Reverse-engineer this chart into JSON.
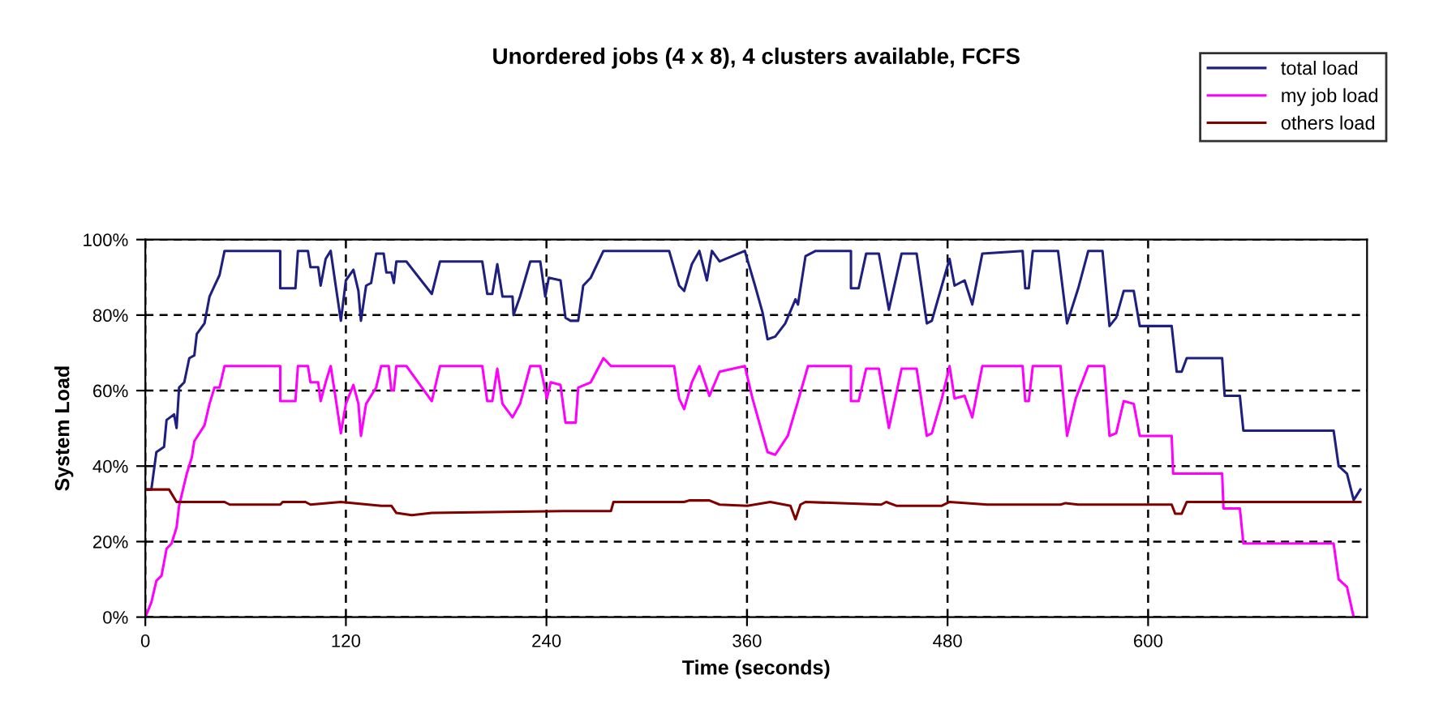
{
  "chart_data": {
    "type": "line",
    "title": "Unordered jobs (4 x 8), 4 clusters available, FCFS",
    "xlabel": "Time (seconds)",
    "ylabel": "System Load",
    "xlim": [
      0,
      731
    ],
    "xticks": [
      0,
      120,
      240,
      360,
      480,
      600
    ],
    "ylim": [
      0,
      100
    ],
    "yticks": [
      {
        "value": 0,
        "label": "0%"
      },
      {
        "value": 20,
        "label": "20%"
      },
      {
        "value": 40,
        "label": "40%"
      },
      {
        "value": 60,
        "label": "60%"
      },
      {
        "value": 80,
        "label": "80%"
      },
      {
        "value": 100,
        "label": "100%"
      }
    ],
    "grid": true,
    "legend": "top right",
    "marker": "none",
    "line_style": "solid",
    "series": [
      {
        "name": "total load",
        "color": "#1f1f80",
        "x": [
          0,
          3.6,
          6.6,
          11.2,
          12.7,
          17.2,
          18.7,
          20.2,
          23.3,
          26.3,
          29.3,
          30.8,
          35.4,
          38.4,
          41.4,
          44.4,
          47.4,
          80.7,
          80.7,
          89.8,
          91.3,
          97.3,
          98.8,
          103.4,
          104.9,
          107.9,
          110.9,
          113.9,
          117,
          120,
          124.5,
          127.5,
          129,
          132.1,
          135.1,
          138.1,
          142.6,
          144.2,
          147.2,
          148.7,
          150.2,
          156.2,
          171.4,
          176.3,
          201.6,
          204.6,
          207.6,
          210.6,
          213.7,
          219.7,
          220.3,
          224.2,
          230.3,
          236.3,
          239.3,
          241.4,
          248.4,
          251.4,
          254.4,
          259,
          262,
          266.5,
          274.1,
          313.4,
          319.4,
          322.4,
          327,
          331.5,
          336,
          339,
          343.6,
          358.7,
          364.8,
          369.3,
          372.3,
          376.9,
          382.9,
          389,
          390.5,
          395,
          401.1,
          422.2,
          422.2,
          426.8,
          431.3,
          438.9,
          444.9,
          452.5,
          461.5,
          467.6,
          470.6,
          476.6,
          481.2,
          484.2,
          490.2,
          494.8,
          500.8,
          524.9,
          526.5,
          528.6,
          531,
          546.1,
          551.5,
          558.2,
          564.2,
          572.7,
          576.9,
          580.9,
          585.4,
          591.4,
          595,
          614.1,
          617.1,
          620.1,
          623.1,
          644.3,
          645.8,
          654.9,
          657,
          711,
          714,
          719,
          723,
          727
        ],
        "values": [
          33.8,
          33.8,
          43.7,
          45.1,
          52.2,
          53.7,
          50.1,
          60.8,
          62.2,
          68.6,
          69.3,
          75,
          77.8,
          84.9,
          87.8,
          90.6,
          97,
          97,
          87.1,
          87.1,
          97,
          97,
          92.7,
          92.7,
          87.8,
          94.9,
          97,
          87.8,
          78.5,
          89.2,
          92,
          86.4,
          78.5,
          87.8,
          88.5,
          96.3,
          96.3,
          91.3,
          91.3,
          88.5,
          94.2,
          94.2,
          85.6,
          94.2,
          94.2,
          85.6,
          85.6,
          93.5,
          84.9,
          84.9,
          80,
          84.9,
          94.2,
          94.2,
          84.9,
          89.9,
          89.2,
          79.3,
          78.5,
          78.5,
          87.8,
          89.9,
          97,
          97,
          87.8,
          86.4,
          93.5,
          97,
          89.2,
          97,
          94.2,
          97,
          87.8,
          80.7,
          73.6,
          74.3,
          77.8,
          84.2,
          82.8,
          95.6,
          97,
          97,
          87.1,
          87.1,
          96.3,
          96.3,
          81.4,
          96.3,
          96.3,
          77.8,
          78.5,
          87.8,
          94.9,
          87.8,
          89.2,
          82.8,
          96.3,
          97,
          87.1,
          87.1,
          97,
          97,
          77.8,
          87.1,
          97,
          97,
          77.1,
          79.3,
          86.4,
          86.4,
          77.1,
          77.1,
          65,
          65,
          68.6,
          68.6,
          58.6,
          58.6,
          49.4,
          49.4,
          40,
          38,
          31,
          33.8
        ]
      },
      {
        "name": "my job load",
        "color": "#ff00ff",
        "x": [
          0,
          3.6,
          6.6,
          9.7,
          12.7,
          15.7,
          18.7,
          20.2,
          24.8,
          27.8,
          29.3,
          35.4,
          38.4,
          41.4,
          44.4,
          47.4,
          80.7,
          80.7,
          89.8,
          91.3,
          97.3,
          98.8,
          103.4,
          104.9,
          107.9,
          110.9,
          113.9,
          117,
          120,
          124.5,
          127.5,
          129,
          132.1,
          138.1,
          141.1,
          145.6,
          147.2,
          148.7,
          150.2,
          156.2,
          171.4,
          176.3,
          201.6,
          204.6,
          207.6,
          210.6,
          213.7,
          219.7,
          224.2,
          230.3,
          236.3,
          240.3,
          242.5,
          248.4,
          251.4,
          257.5,
          259,
          266.5,
          274.1,
          278.6,
          316.4,
          319.4,
          322.4,
          327,
          331.5,
          337.5,
          343.6,
          358.7,
          363.3,
          367.8,
          372.3,
          376.9,
          384.4,
          390.5,
          396.5,
          422.2,
          422.2,
          426.8,
          431.3,
          438.9,
          444.9,
          452.5,
          461.5,
          467.6,
          470.6,
          476.6,
          481.2,
          484.2,
          490.2,
          494.8,
          500.8,
          524.9,
          526.5,
          528.6,
          531,
          547.6,
          551.5,
          556.7,
          564.2,
          573.7,
          576.9,
          580.9,
          585.4,
          591.4,
          595,
          614.1,
          615,
          644.3,
          645.1,
          654.9,
          657,
          711,
          714,
          719,
          723
        ],
        "values": [
          0,
          3.9,
          9.6,
          11,
          18.1,
          19.5,
          23.8,
          29.5,
          38,
          42.3,
          46.6,
          50.8,
          56.5,
          60.8,
          60.8,
          66.5,
          66.5,
          57.2,
          57.2,
          66.5,
          66.5,
          62.2,
          62.2,
          57.2,
          62.2,
          66.5,
          57.9,
          48.7,
          56.5,
          61.5,
          56.5,
          48,
          56.5,
          60.8,
          66.5,
          66.5,
          60.1,
          60.1,
          66.5,
          66.5,
          57.2,
          66.5,
          66.5,
          57.2,
          57.2,
          65.8,
          56.5,
          52.9,
          56.5,
          66.5,
          66.5,
          57.9,
          62.2,
          61.5,
          51.5,
          51.5,
          60.8,
          62.2,
          68.6,
          66.5,
          66.5,
          57.9,
          55.1,
          62.2,
          66.5,
          58.6,
          65,
          66.5,
          57.9,
          50.8,
          43.7,
          43,
          48,
          57.2,
          66.5,
          66.5,
          57.2,
          57.2,
          65.8,
          65.8,
          50.1,
          65.8,
          65.8,
          48,
          48.7,
          57.9,
          66.5,
          57.9,
          58.6,
          52.9,
          66.5,
          66.5,
          57.2,
          57.2,
          66.5,
          66.5,
          48,
          57.9,
          66.5,
          66.5,
          48,
          48.7,
          57.2,
          56.5,
          48,
          48,
          38,
          38,
          28.8,
          28.8,
          19.5,
          19.5,
          10,
          8,
          0
        ]
      },
      {
        "name": "others load",
        "color": "#800000",
        "x": [
          0,
          14.2,
          18.7,
          47.4,
          50.5,
          80.7,
          82.2,
          95.8,
          98.8,
          117,
          141.1,
          147.2,
          150.2,
          159.3,
          171.4,
          249.9,
          278.6,
          280.1,
          322.4,
          325.4,
          337.5,
          343.6,
          360.2,
          373.9,
          386,
          389,
          392,
          395,
          440.3,
          443.3,
          449.3,
          476.6,
          481.2,
          503.8,
          547.6,
          550.6,
          558.2,
          614.1,
          616.2,
          620.1,
          623.1,
          727
        ],
        "values": [
          33.8,
          33.8,
          30.5,
          30.5,
          29.8,
          29.8,
          30.5,
          30.5,
          29.8,
          30.5,
          29.5,
          29.5,
          27.6,
          27,
          27.6,
          28.1,
          28.1,
          30.5,
          30.5,
          30.9,
          30.9,
          29.8,
          29.5,
          30.5,
          29.5,
          25.9,
          29.8,
          30.5,
          29.8,
          30.5,
          29.5,
          29.5,
          30.5,
          29.8,
          29.8,
          30.2,
          29.8,
          29.8,
          27.4,
          27.4,
          30.5,
          30.5
        ]
      }
    ]
  }
}
